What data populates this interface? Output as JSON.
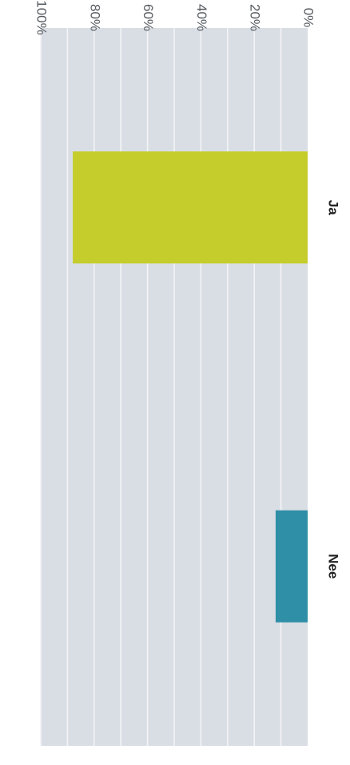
{
  "chart_data": {
    "type": "bar",
    "orientation": "horizontal",
    "categories": [
      "Ja",
      "Nee"
    ],
    "values": [
      88,
      12
    ],
    "xlim": [
      0,
      100
    ],
    "ticks": [
      {
        "value": 0,
        "label": "0%"
      },
      {
        "value": 20,
        "label": "20%"
      },
      {
        "value": 40,
        "label": "40%"
      },
      {
        "value": 60,
        "label": "60%"
      },
      {
        "value": 80,
        "label": "80%"
      },
      {
        "value": 100,
        "label": "100%"
      }
    ],
    "minor_ticks": [
      10,
      30,
      50,
      70,
      90
    ],
    "grid": true,
    "title": "",
    "xlabel": "",
    "ylabel": "",
    "colors": {
      "bars": [
        "#c5cd2c",
        "#2e8fa6"
      ],
      "plot_background": "#d9dde4",
      "gridline": "#f3f4f6"
    }
  }
}
